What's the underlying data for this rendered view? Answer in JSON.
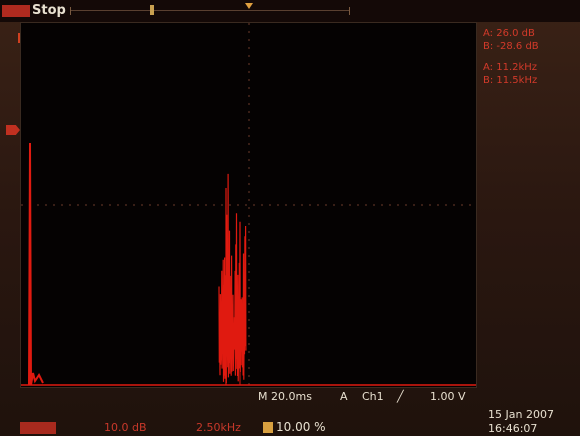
{
  "status": {
    "run_state": "Stop"
  },
  "readouts": {
    "cursor_a_amplitude": "A:   26.0 dB",
    "cursor_b_amplitude": "B:   -28.6 dB",
    "cursor_a_frequency": "A:   11.2kHz",
    "cursor_b_frequency": "B:   11.5kHz"
  },
  "settings": {
    "timebase": "M 20.0ms",
    "trigger_mode": "A",
    "trigger_channel": "Ch1",
    "trigger_level": "1.00 V",
    "ch1_scale": "10.0 dB",
    "frequency": "2.50kHz",
    "position_percent": "10.00 %"
  },
  "clock": {
    "date": "15 Jan  2007",
    "time": "16:46:07"
  },
  "colors": {
    "trace": "#e01a10",
    "readout": "#d23a2a",
    "text": "#e8e0d0",
    "grid": "#6a3a2a"
  }
}
